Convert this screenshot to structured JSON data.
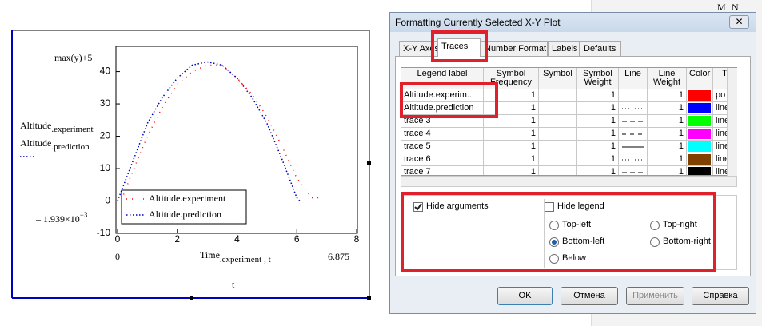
{
  "plot": {
    "y_expression": "max(y)+5",
    "y_labels": [
      {
        "name": "Altitude",
        "subscript": ".experiment"
      },
      {
        "name": "Altitude",
        "subscript": ".prediction"
      }
    ],
    "y_min_label": "– 1.939×10",
    "y_min_exponent": "−3",
    "x_min_label": "0",
    "x_max_label": "6.875",
    "x_label": {
      "name": "Time",
      "subscript": ".experiment",
      "suffix": ", t"
    },
    "x_label_bottom": "t",
    "xlim": [
      0,
      8
    ],
    "xticks": [
      0,
      2,
      4,
      6,
      8
    ],
    "ylim": [
      -10,
      47.8
    ],
    "yticks": [
      -10,
      0,
      10,
      20,
      30,
      40
    ],
    "series": [
      {
        "name": "Altitude.experiment",
        "color": "#ff0000",
        "style": "sparse-dot",
        "x": [
          0.2,
          0.5,
          1,
          1.5,
          2,
          2.5,
          3,
          3.5,
          4,
          4.5,
          5,
          5.5,
          6,
          6.5,
          6.875
        ],
        "values": [
          2,
          9,
          20,
          29,
          36,
          40,
          42,
          42,
          38,
          33,
          26,
          17,
          7,
          1,
          1
        ]
      },
      {
        "name": "Altitude.prediction",
        "color": "#0000c0",
        "style": "dense-dot",
        "x": [
          0,
          0.5,
          1,
          1.5,
          2,
          2.5,
          3,
          3.5,
          4,
          4.5,
          5,
          5.5,
          6,
          6.1
        ],
        "values": [
          0,
          12,
          24,
          32,
          38,
          42,
          43,
          42,
          38,
          32,
          24,
          13,
          1,
          0
        ]
      }
    ]
  },
  "toolbar": [
    "M",
    "N"
  ],
  "dialog": {
    "title": "Formatting Currently Selected X-Y Plot",
    "close": "✕",
    "tabs": [
      "X-Y Axes",
      "Traces",
      "Number Format",
      "Labels",
      "Defaults"
    ],
    "active_tab": 1,
    "columns": [
      "Legend label",
      "Symbol Frequency",
      "Symbol",
      "Symbol Weight",
      "Line",
      "Line Weight",
      "Color",
      "T"
    ],
    "rows": [
      {
        "label": "Altitude.experim...",
        "frequency": 1,
        "weight": 1,
        "line": "none",
        "line_weight": 1,
        "color": "#ff0000",
        "type": "po"
      },
      {
        "label": "Altitude.prediction",
        "frequency": 1,
        "weight": 1,
        "line": "dot",
        "line_weight": 1,
        "color": "#0000ff",
        "type": "line"
      },
      {
        "label": "trace 3",
        "frequency": 1,
        "weight": 1,
        "line": "dash",
        "line_weight": 1,
        "color": "#00ff00",
        "type": "line"
      },
      {
        "label": "trace 4",
        "frequency": 1,
        "weight": 1,
        "line": "dash-dot",
        "line_weight": 1,
        "color": "#ff00ff",
        "type": "line"
      },
      {
        "label": "trace 5",
        "frequency": 1,
        "weight": 1,
        "line": "solid",
        "line_weight": 1,
        "color": "#00ffff",
        "type": "line"
      },
      {
        "label": "trace 6",
        "frequency": 1,
        "weight": 1,
        "line": "dot",
        "line_weight": 1,
        "color": "#804000",
        "type": "line"
      },
      {
        "label": "trace 7",
        "frequency": 1,
        "weight": 1,
        "line": "dash",
        "line_weight": 1,
        "color": "#000000",
        "type": "line"
      }
    ],
    "hide_arguments": {
      "label": "Hide arguments",
      "checked": true
    },
    "hide_legend": {
      "label": "Hide legend",
      "checked": false
    },
    "legend_positions": [
      {
        "label": "Top-left",
        "selected": false
      },
      {
        "label": "Top-right",
        "selected": false
      },
      {
        "label": "Bottom-left",
        "selected": true
      },
      {
        "label": "Bottom-right",
        "selected": false
      },
      {
        "label": "Below",
        "selected": false
      }
    ],
    "buttons": [
      "OK",
      "Отмена",
      "Применить",
      "Справка"
    ]
  }
}
